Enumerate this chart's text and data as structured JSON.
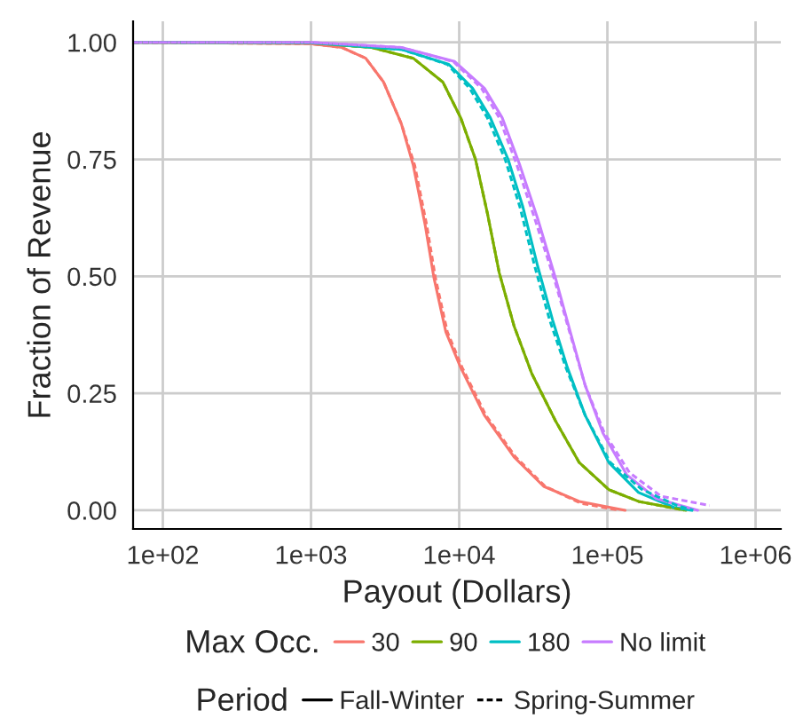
{
  "chart_data": {
    "type": "line",
    "xlabel": "Payout (Dollars)",
    "ylabel": "Fraction of Revenue",
    "log": "x",
    "xlim": [
      63,
      1480000
    ],
    "ylim": [
      -0.04,
      1.045
    ],
    "xticks": [
      {
        "value": 100,
        "label": "1e+02"
      },
      {
        "value": 1000,
        "label": "1e+03"
      },
      {
        "value": 10000,
        "label": "1e+04"
      },
      {
        "value": 100000,
        "label": "1e+05"
      },
      {
        "value": 1000000,
        "label": "1e+06"
      }
    ],
    "yticks": [
      {
        "value": 0,
        "label": "0.00"
      },
      {
        "value": 0.25,
        "label": "0.25"
      },
      {
        "value": 0.5,
        "label": "0.50"
      },
      {
        "value": 0.75,
        "label": "0.75"
      },
      {
        "value": 1,
        "label": "1.00"
      }
    ],
    "grid": true,
    "legend": "bottom",
    "legend_title": [
      "Max Occ.",
      "Period"
    ],
    "annotations": [
      "Fall-Winter",
      "Spring-Summer"
    ],
    "series": [
      {
        "name": "30",
        "color": "#f8766d",
        "line_style": "solid",
        "x": [
          63,
          1000,
          1620,
          2340,
          3090,
          4070,
          4900,
          5890,
          6760,
          8130,
          10230,
          14790,
          23440,
          37150,
          64570,
          131800
        ],
        "values": [
          1.0,
          0.997,
          0.989,
          0.966,
          0.915,
          0.826,
          0.737,
          0.61,
          0.496,
          0.381,
          0.305,
          0.203,
          0.114,
          0.051,
          0.019,
          0.0
        ]
      },
      {
        "name": "90",
        "color": "#7cae00",
        "line_style": "solid",
        "x": [
          63,
          1000,
          2570,
          4900,
          7760,
          10230,
          12880,
          15490,
          18620,
          23440,
          30900,
          44670,
          64570,
          102300,
          162200,
          338800
        ],
        "values": [
          1.0,
          0.999,
          0.989,
          0.966,
          0.915,
          0.839,
          0.75,
          0.635,
          0.508,
          0.394,
          0.292,
          0.191,
          0.102,
          0.044,
          0.019,
          0.0
        ]
      },
      {
        "name": "180",
        "color": "#00bfc4",
        "line_style": "solid",
        "x": [
          63,
          1000,
          4070,
          8510,
          12300,
          16220,
          21380,
          26920,
          33880,
          42660,
          53700,
          70790,
          102300,
          162200,
          281800,
          371500
        ],
        "values": [
          1.0,
          0.999,
          0.985,
          0.953,
          0.902,
          0.839,
          0.75,
          0.648,
          0.521,
          0.407,
          0.305,
          0.203,
          0.102,
          0.038,
          0.006,
          0.0
        ]
      },
      {
        "name": "No limit",
        "color": "#c77cff",
        "line_style": "solid",
        "x": [
          63,
          1000,
          4070,
          9330,
          14790,
          19500,
          25700,
          33880,
          44670,
          56230,
          70790,
          93330,
          134900,
          213800,
          407400
        ],
        "values": [
          1.0,
          1.0,
          0.989,
          0.959,
          0.902,
          0.839,
          0.737,
          0.623,
          0.496,
          0.381,
          0.267,
          0.165,
          0.076,
          0.025,
          0.0
        ]
      },
      {
        "color": "#f8766d",
        "line_style": "dashed",
        "x": [
          63,
          1000,
          1620,
          2340,
          3090,
          4070,
          5010,
          6030,
          6920,
          8320,
          10470,
          15140,
          23990,
          38020,
          66070,
          120000
        ],
        "values": [
          1.0,
          0.997,
          0.989,
          0.966,
          0.915,
          0.826,
          0.737,
          0.61,
          0.496,
          0.381,
          0.305,
          0.203,
          0.114,
          0.051,
          0.015,
          0.0
        ]
      },
      {
        "color": "#7cae00",
        "line_style": "dashed",
        "x": [
          63,
          1000,
          2570,
          4900,
          7760,
          10230,
          12880,
          15490,
          18620,
          23440,
          30900,
          44670,
          64570,
          102300,
          162200,
          330000
        ],
        "values": [
          1.0,
          0.999,
          0.989,
          0.966,
          0.915,
          0.839,
          0.75,
          0.635,
          0.508,
          0.394,
          0.292,
          0.191,
          0.102,
          0.044,
          0.019,
          0.0
        ]
      },
      {
        "color": "#00bfc4",
        "line_style": "dashed",
        "x": [
          63,
          1000,
          4070,
          8320,
          11750,
          15490,
          20420,
          25700,
          32360,
          40740,
          52480,
          70790,
          104700,
          169800,
          295000,
          380000
        ],
        "values": [
          1.0,
          0.999,
          0.985,
          0.953,
          0.902,
          0.839,
          0.75,
          0.648,
          0.521,
          0.407,
          0.305,
          0.203,
          0.102,
          0.045,
          0.01,
          0.0
        ]
      },
      {
        "color": "#c77cff",
        "line_style": "dashed",
        "x": [
          63,
          1000,
          4070,
          9120,
          14130,
          18620,
          24550,
          32360,
          43650,
          55590,
          70790,
          95500,
          141300,
          230000,
          490000
        ],
        "values": [
          1.0,
          1.0,
          0.989,
          0.959,
          0.902,
          0.839,
          0.737,
          0.623,
          0.496,
          0.381,
          0.267,
          0.165,
          0.08,
          0.03,
          0.01
        ]
      }
    ]
  }
}
